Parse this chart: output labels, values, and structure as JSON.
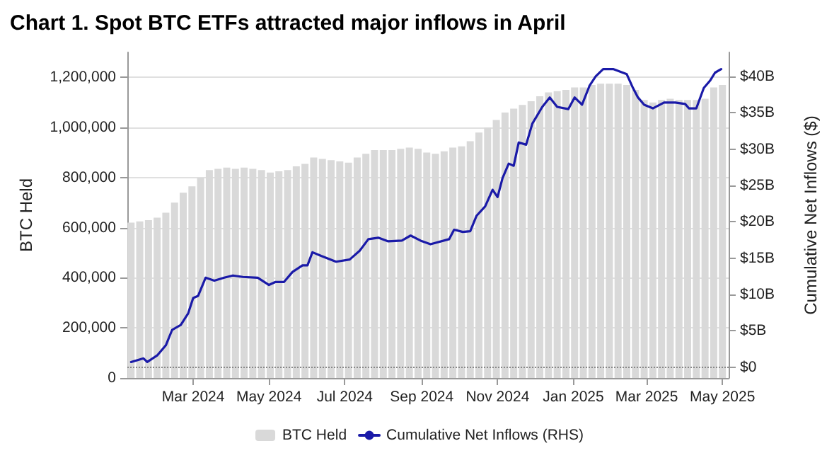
{
  "chart_data": {
    "type": "bar",
    "title": "Chart 1. Spot BTC ETFs attracted major inflows in April",
    "ylabel": "BTC Held",
    "y2label": "Cumulative Net Inflows ($)",
    "series": [
      {
        "name": "BTC Held",
        "color": "#d9d9d9",
        "x": [
          "2024-01-11",
          "2024-01-18",
          "2024-01-25",
          "2024-02-01",
          "2024-02-08",
          "2024-02-15",
          "2024-02-22",
          "2024-02-29",
          "2024-03-07",
          "2024-03-14",
          "2024-03-21",
          "2024-03-28",
          "2024-04-04",
          "2024-04-11",
          "2024-04-18",
          "2024-04-25",
          "2024-05-02",
          "2024-05-09",
          "2024-05-16",
          "2024-05-23",
          "2024-05-30",
          "2024-06-06",
          "2024-06-13",
          "2024-06-20",
          "2024-06-27",
          "2024-07-04",
          "2024-07-11",
          "2024-07-18",
          "2024-07-25",
          "2024-08-01",
          "2024-08-08",
          "2024-08-15",
          "2024-08-22",
          "2024-08-29",
          "2024-09-05",
          "2024-09-12",
          "2024-09-19",
          "2024-09-26",
          "2024-10-03",
          "2024-10-10",
          "2024-10-17",
          "2024-10-24",
          "2024-10-31",
          "2024-11-07",
          "2024-11-14",
          "2024-11-21",
          "2024-11-28",
          "2024-12-05",
          "2024-12-12",
          "2024-12-19",
          "2024-12-26",
          "2025-01-02",
          "2025-01-09",
          "2025-01-16",
          "2025-01-23",
          "2025-01-30",
          "2025-02-06",
          "2025-02-13",
          "2025-02-20",
          "2025-02-27",
          "2025-03-06",
          "2025-03-13",
          "2025-03-20",
          "2025-03-27",
          "2025-04-03",
          "2025-04-10",
          "2025-04-17",
          "2025-04-24",
          "2025-05-01"
        ],
        "values": [
          620000,
          625000,
          630000,
          640000,
          660000,
          700000,
          740000,
          765000,
          800000,
          830000,
          835000,
          840000,
          835000,
          840000,
          835000,
          830000,
          820000,
          825000,
          830000,
          845000,
          855000,
          880000,
          875000,
          870000,
          865000,
          860000,
          880000,
          895000,
          910000,
          910000,
          910000,
          915000,
          920000,
          915000,
          900000,
          895000,
          905000,
          920000,
          925000,
          945000,
          980000,
          1000000,
          1030000,
          1060000,
          1075000,
          1090000,
          1105000,
          1125000,
          1140000,
          1145000,
          1150000,
          1160000,
          1160000,
          1170000,
          1175000,
          1175000,
          1175000,
          1170000,
          1150000,
          1110000,
          1100000,
          1110000,
          1115000,
          1110000,
          1110000,
          1110000,
          1115000,
          1160000,
          1170000
        ]
      },
      {
        "name": "Cumulative Net Inflows (RHS)",
        "type": "line",
        "axis": "y2",
        "color": "#1a1aa8",
        "x": [
          "2024-01-11",
          "2024-01-21",
          "2024-01-24",
          "2024-02-01",
          "2024-02-08",
          "2024-02-13",
          "2024-02-20",
          "2024-02-26",
          "2024-03-01",
          "2024-03-05",
          "2024-03-11",
          "2024-03-18",
          "2024-03-26",
          "2024-04-02",
          "2024-04-10",
          "2024-04-22",
          "2024-05-01",
          "2024-05-06",
          "2024-05-13",
          "2024-05-20",
          "2024-05-28",
          "2024-06-01",
          "2024-06-05",
          "2024-06-12",
          "2024-06-24",
          "2024-07-05",
          "2024-07-13",
          "2024-07-20",
          "2024-07-28",
          "2024-08-05",
          "2024-08-16",
          "2024-08-23",
          "2024-08-31",
          "2024-09-08",
          "2024-09-23",
          "2024-09-27",
          "2024-10-04",
          "2024-10-10",
          "2024-10-15",
          "2024-10-22",
          "2024-10-28",
          "2024-11-01",
          "2024-11-05",
          "2024-11-10",
          "2024-11-14",
          "2024-11-18",
          "2024-11-24",
          "2024-11-29",
          "2024-12-07",
          "2024-12-13",
          "2024-12-19",
          "2024-12-28",
          "2025-01-02",
          "2025-01-08",
          "2025-01-14",
          "2025-01-19",
          "2025-01-25",
          "2025-02-02",
          "2025-02-13",
          "2025-02-18",
          "2025-02-22",
          "2025-02-27",
          "2025-03-06",
          "2025-03-15",
          "2025-03-24",
          "2025-04-01",
          "2025-04-04",
          "2025-04-10",
          "2025-04-16",
          "2025-04-21",
          "2025-04-25",
          "2025-04-30"
        ],
        "values": [
          0.7,
          1.2,
          0.7,
          1.6,
          3.0,
          5.1,
          5.8,
          7.4,
          9.5,
          9.8,
          12.3,
          11.9,
          12.3,
          12.6,
          12.4,
          12.3,
          11.3,
          11.7,
          11.7,
          13.1,
          14.0,
          14.0,
          15.8,
          15.3,
          14.5,
          14.8,
          16.0,
          17.6,
          17.8,
          17.3,
          17.4,
          18.1,
          17.4,
          16.9,
          17.6,
          18.9,
          18.6,
          18.7,
          20.8,
          22.1,
          24.4,
          23.4,
          26.0,
          28.0,
          27.7,
          30.9,
          30.6,
          33.5,
          35.8,
          37.1,
          35.8,
          35.5,
          37.1,
          36.1,
          38.7,
          40.0,
          41.0,
          41.0,
          40.3,
          38.4,
          37.1,
          36.1,
          35.6,
          36.4,
          36.4,
          36.2,
          35.6,
          35.6,
          38.4,
          39.4,
          40.5,
          41.0
        ]
      }
    ],
    "xlim": [
      "2024-01-08",
      "2025-05-06"
    ],
    "xticks": [
      {
        "value": "2024-03-01",
        "label": "Mar 2024"
      },
      {
        "value": "2024-05-01",
        "label": "May 2024"
      },
      {
        "value": "2024-07-01",
        "label": "Jul 2024"
      },
      {
        "value": "2024-09-01",
        "label": "Sep 2024"
      },
      {
        "value": "2024-11-01",
        "label": "Nov 2024"
      },
      {
        "value": "2025-01-01",
        "label": "Jan 2025"
      },
      {
        "value": "2025-03-01",
        "label": "Mar 2025"
      },
      {
        "value": "2025-05-01",
        "label": "May 2025"
      }
    ],
    "ylim": [
      0,
      1300000
    ],
    "yticks": [
      0,
      {
        "value": 200000,
        "label": "200,000"
      },
      {
        "value": 400000,
        "label": "400,000"
      },
      {
        "value": 600000,
        "label": "600,000"
      },
      {
        "value": 800000,
        "label": "800,000"
      },
      {
        "value": 1000000,
        "label": "1,000,000"
      },
      {
        "value": 1200000,
        "label": "1,200,000"
      }
    ],
    "y2lim": [
      -1.5,
      43.3
    ],
    "y2ticks": [
      {
        "value": 0,
        "label": "$0"
      },
      {
        "value": 5,
        "label": "$5B"
      },
      {
        "value": 10,
        "label": "$10B"
      },
      {
        "value": 15,
        "label": "$15B"
      },
      {
        "value": 20,
        "label": "$20B"
      },
      {
        "value": 25,
        "label": "$25B"
      },
      {
        "value": 30,
        "label": "$30B"
      },
      {
        "value": 35,
        "label": "$35B"
      },
      {
        "value": 40,
        "label": "$40B"
      }
    ],
    "ref_lines": [
      {
        "axis": "y2",
        "value": 0,
        "color": "#888888",
        "line_style": "dotted"
      }
    ],
    "grid": "y",
    "legend": "bottom",
    "marker": "none",
    "line_style": "solid"
  }
}
